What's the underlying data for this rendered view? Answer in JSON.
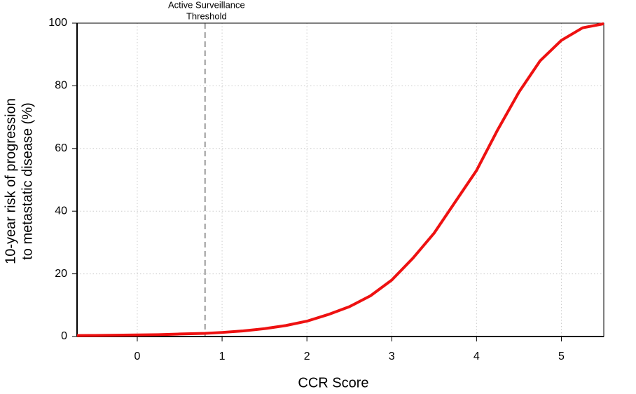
{
  "chart_data": {
    "type": "line",
    "x_label": "CCR Score",
    "y_label": [
      "10-year risk of progression",
      "to metastatic disease (%)"
    ],
    "x": [
      -0.71,
      -0.5,
      0,
      0.25,
      0.5,
      0.8,
      1,
      1.25,
      1.5,
      1.75,
      2,
      2.25,
      2.5,
      2.75,
      3,
      3.25,
      3.5,
      3.75,
      4,
      4.25,
      4.5,
      4.75,
      5,
      5.25,
      5.5
    ],
    "series": [
      {
        "color": "#ee1111",
        "values": [
          0.3,
          0.35,
          0.5,
          0.6,
          0.8,
          1.0,
          1.3,
          1.8,
          2.5,
          3.5,
          4.9,
          7,
          9.5,
          13,
          18,
          25,
          33,
          43,
          53,
          66,
          78,
          88,
          94.5,
          98.5,
          99.8
        ]
      }
    ],
    "xlim": [
      -0.71,
      5.5
    ],
    "ylim": [
      0,
      100
    ],
    "xticks": [
      0,
      1,
      2,
      3,
      4,
      5
    ],
    "yticks": [
      0,
      20,
      40,
      60,
      80,
      100
    ],
    "grid": true,
    "annotation": {
      "x": 0.8,
      "lines": [
        "Active Surveillance",
        "Threshold"
      ]
    }
  }
}
